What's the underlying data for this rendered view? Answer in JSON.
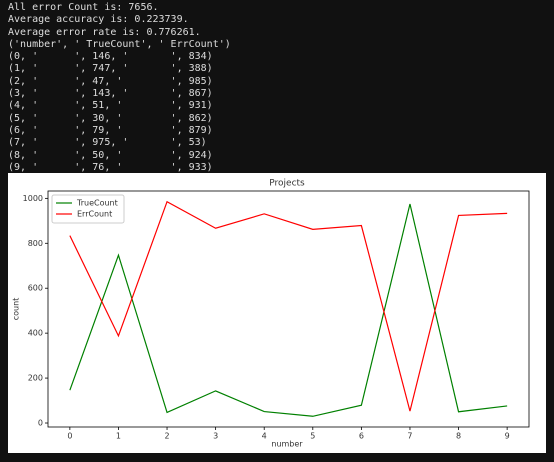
{
  "console": {
    "lines": [
      "All error Count is: 7656.",
      "Average accuracy is: 0.223739.",
      "Average error rate is: 0.776261.",
      "('number', ' TrueCount', ' ErrCount')",
      "(0, '      ', 146, '       ', 834)",
      "(1, '      ', 747, '       ', 388)",
      "(2, '      ', 47, '        ', 985)",
      "(3, '      ', 143, '       ', 867)",
      "(4, '      ', 51, '        ', 931)",
      "(5, '      ', 30, '        ', 862)",
      "(6, '      ', 79, '        ', 879)",
      "(7, '      ', 975, '       ', 53)",
      "(8, '      ', 50, '        ', 924)",
      "(9, '      ', 76, '        ', 933)"
    ]
  },
  "chart_data": {
    "type": "line",
    "title": "Projects",
    "xlabel": "number",
    "ylabel": "count",
    "x": [
      0,
      1,
      2,
      3,
      4,
      5,
      6,
      7,
      8,
      9
    ],
    "series": [
      {
        "name": "TrueCount",
        "color": "#008000",
        "values": [
          146,
          747,
          47,
          143,
          51,
          30,
          79,
          975,
          50,
          76
        ]
      },
      {
        "name": "ErrCount",
        "color": "#ff0000",
        "values": [
          834,
          388,
          985,
          867,
          931,
          862,
          879,
          53,
          924,
          933
        ]
      }
    ],
    "xlim": [
      -0.45,
      9.45
    ],
    "xticks": [
      0,
      1,
      2,
      3,
      4,
      5,
      6,
      7,
      8,
      9
    ],
    "ylim": [
      -17.75,
      1032.75
    ],
    "yticks": [
      0,
      200,
      400,
      600,
      800,
      1000
    ],
    "legend": "upper left"
  }
}
